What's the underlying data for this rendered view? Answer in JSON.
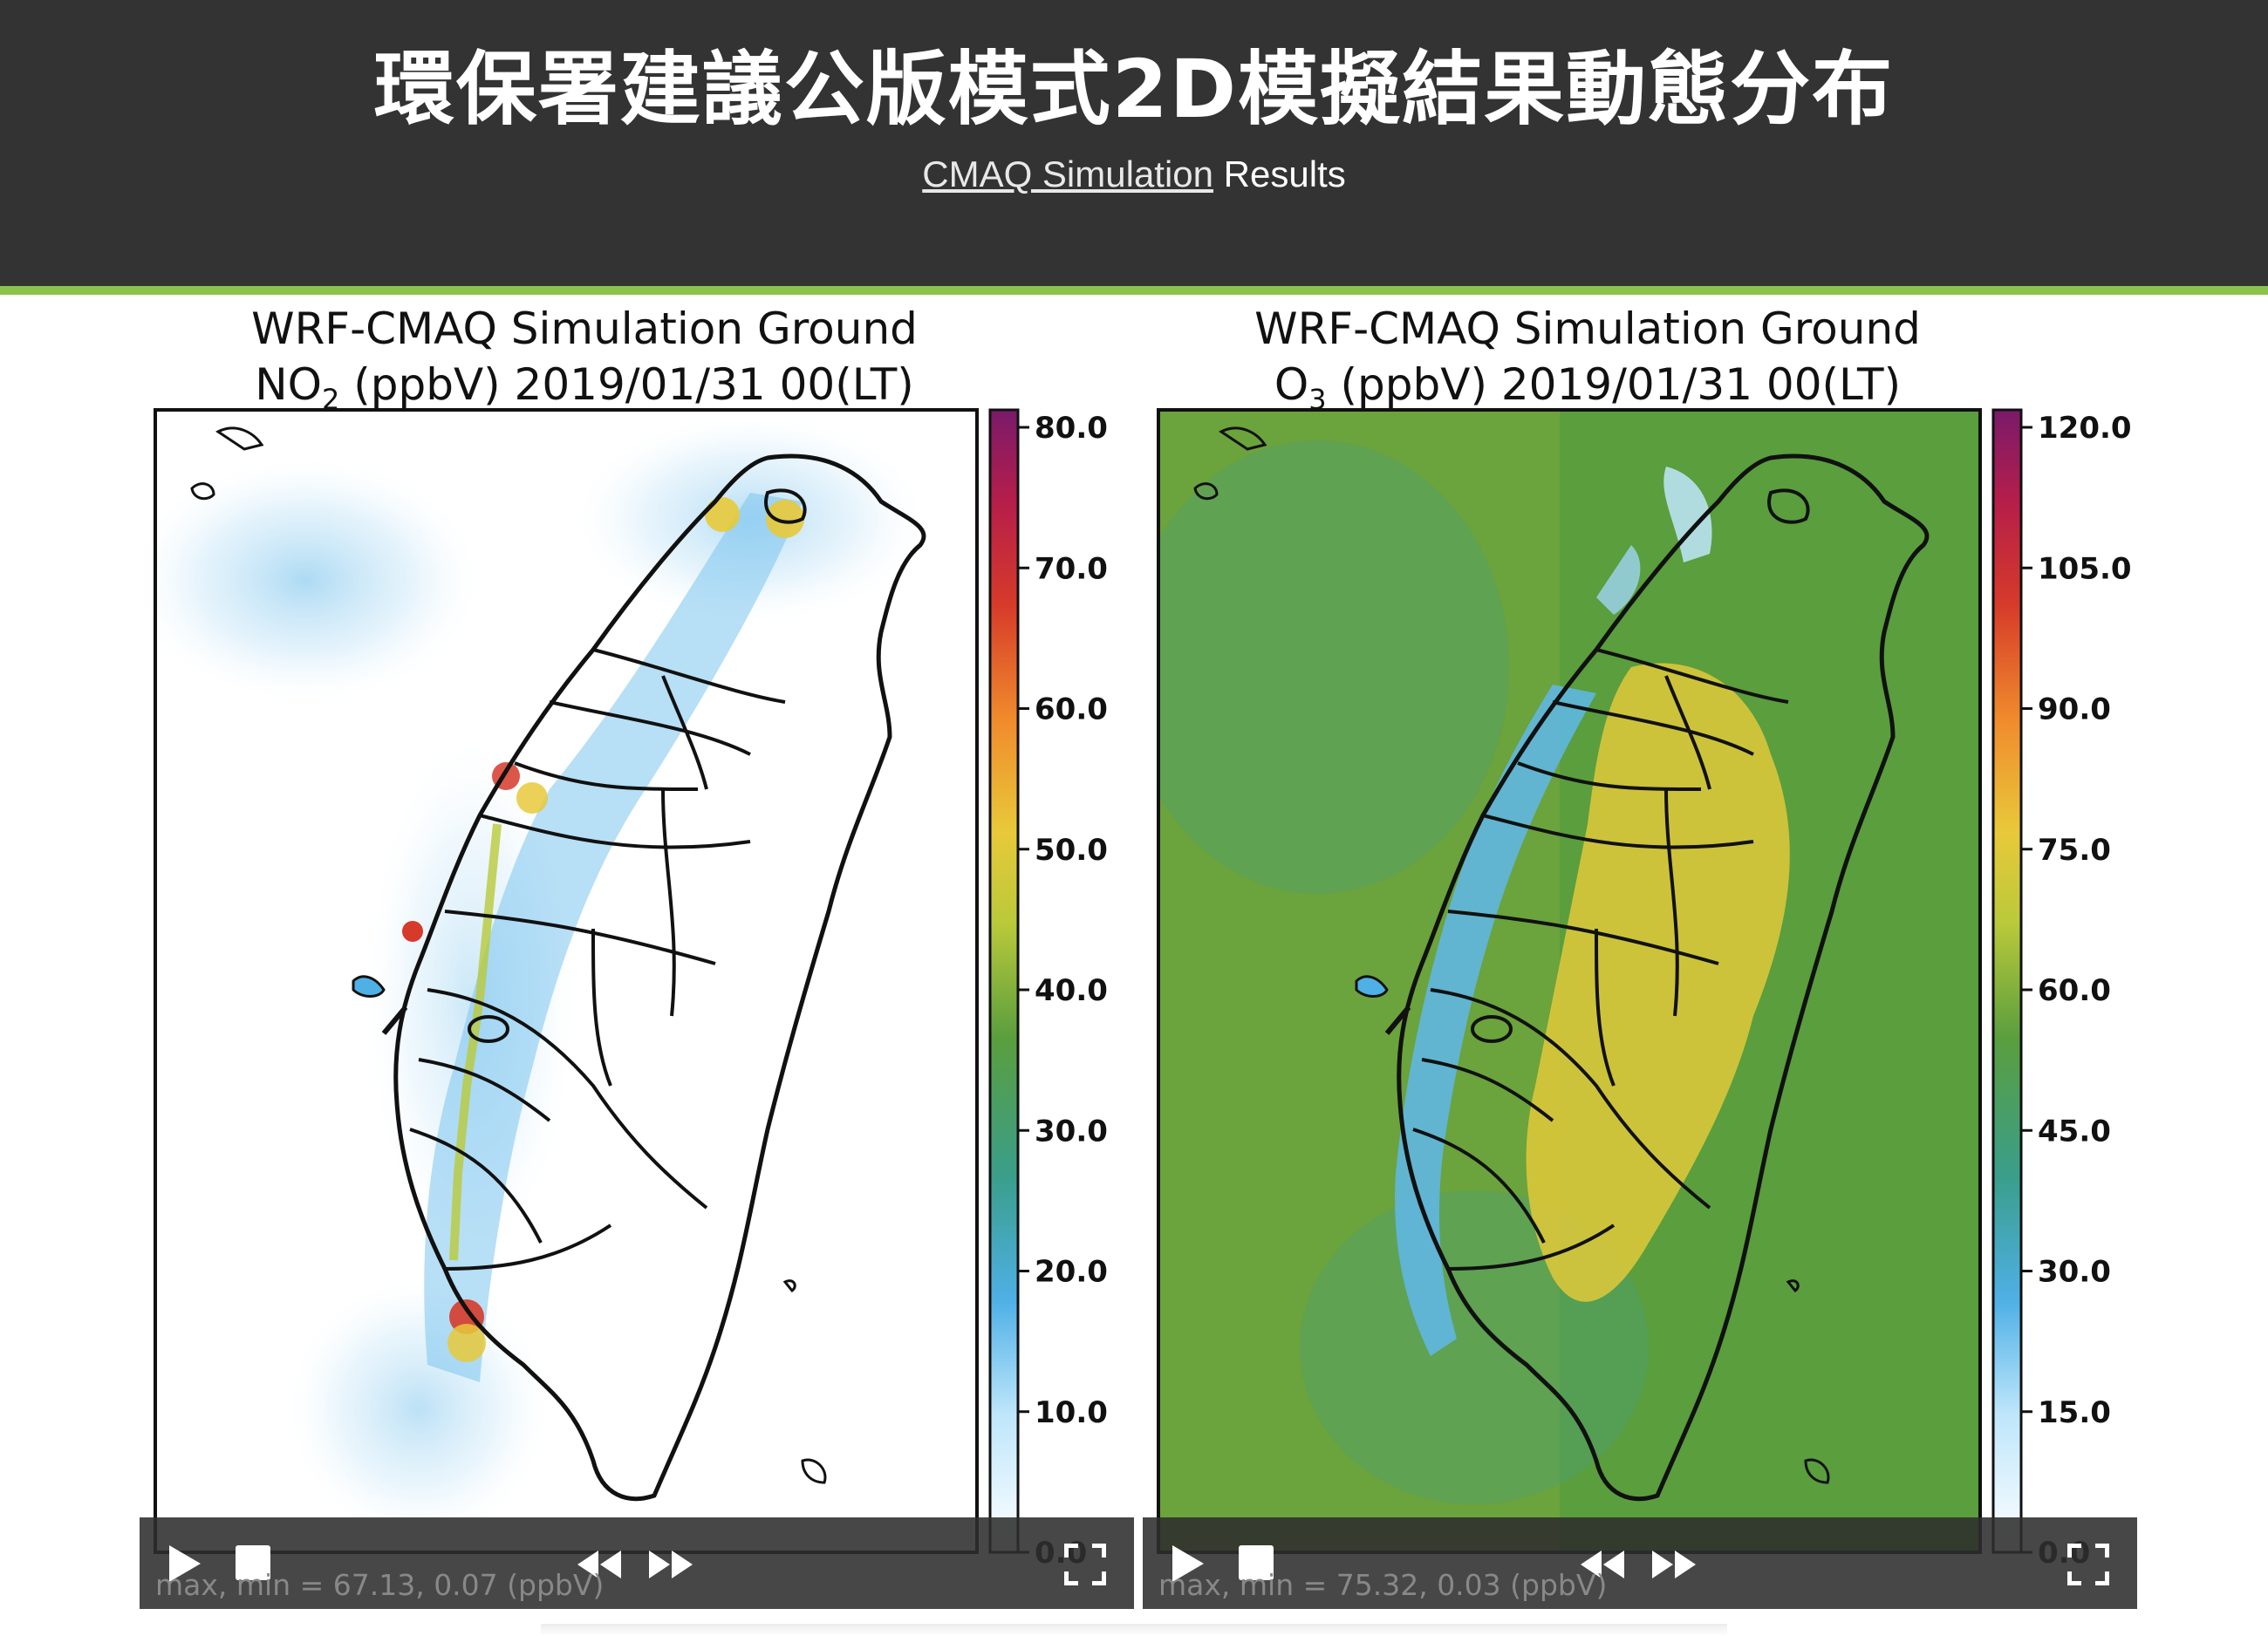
{
  "header": {
    "title": "環保署建議公版模式2D模擬結果動態分布",
    "subtitle_link": "CMAQ Simulation",
    "subtitle_rest": " Results"
  },
  "colors": {
    "header_bg": "#333333",
    "accent": "#8bc34a",
    "no2_bg": "#ffffff",
    "o3_bg": "#5a9e3e",
    "hotspot": "#e8c93a"
  },
  "panels": [
    {
      "title_line1": "WRF-CMAQ Simulation Ground",
      "species": "NO",
      "species_sub": "2",
      "title_rest": " (ppbV) 2019/01/31 00(LT)",
      "colorbar_ticks": [
        "80.0",
        "70.0",
        "60.0",
        "50.0",
        "40.0",
        "30.0",
        "20.0",
        "10.0",
        "0.0"
      ],
      "maxmin": "max, min = 67.13, 0.07 (ppbV)"
    },
    {
      "title_line1": "WRF-CMAQ Simulation Ground",
      "species": "O",
      "species_sub": "3",
      "title_rest": " (ppbV) 2019/01/31 00(LT)",
      "colorbar_ticks": [
        "120.0",
        "105.0",
        "90.0",
        "75.0",
        "60.0",
        "45.0",
        "30.0",
        "15.0",
        "0.0"
      ],
      "maxmin": "max, min = 75.32, 0.03 (ppbV)"
    }
  ],
  "controls": {
    "play": "play-icon",
    "stop": "stop-icon",
    "rewind": "rewind-icon",
    "fast_forward": "fast-forward-icon",
    "fullscreen": "fullscreen-icon"
  }
}
